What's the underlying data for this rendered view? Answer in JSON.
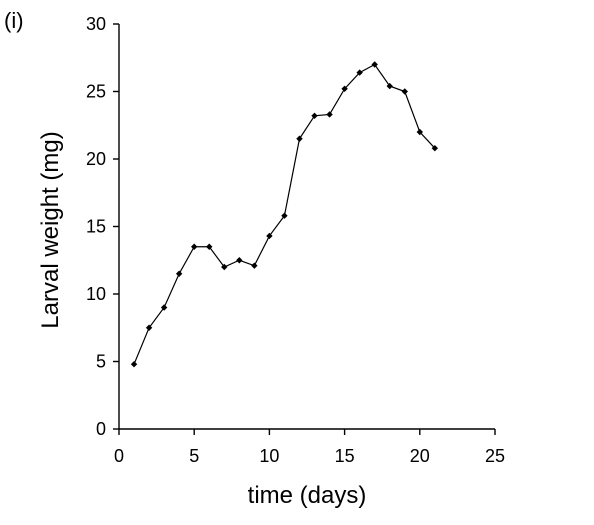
{
  "panel_label": "(i)",
  "chart_data": {
    "type": "line",
    "xlabel": "time (days)",
    "ylabel": "Larval weight (mg)",
    "xlim": [
      0,
      25
    ],
    "ylim": [
      0,
      30
    ],
    "xticks": [
      0,
      5,
      10,
      15,
      20,
      25
    ],
    "yticks": [
      0,
      5,
      10,
      15,
      20,
      25,
      30
    ],
    "grid": false,
    "marker": "diamond",
    "x": [
      1,
      2,
      3,
      4,
      5,
      6,
      7,
      8,
      9,
      10,
      11,
      12,
      13,
      14,
      15,
      16,
      17,
      18,
      19,
      20,
      21
    ],
    "y": [
      4.8,
      7.5,
      9.0,
      11.5,
      13.5,
      13.5,
      12.0,
      12.5,
      12.1,
      14.3,
      15.8,
      21.5,
      23.2,
      23.3,
      25.2,
      26.4,
      27.0,
      25.4,
      25.0,
      22.0,
      20.8
    ]
  }
}
